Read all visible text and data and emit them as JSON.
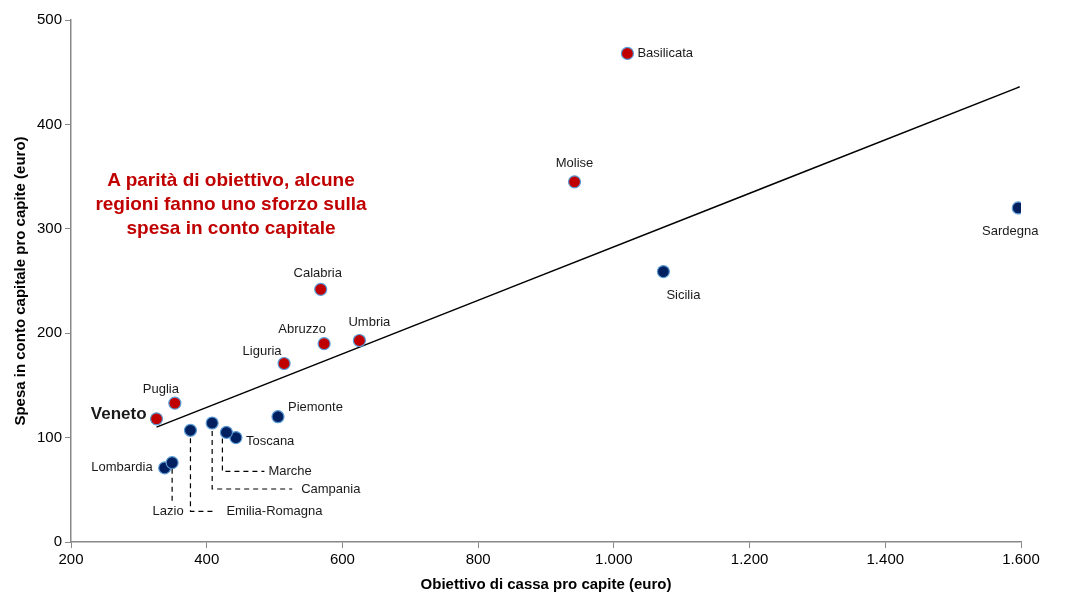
{
  "chart_data": {
    "type": "scatter",
    "xlabel": "Obiettivo di cassa pro capite (euro)",
    "ylabel": "Spesa in conto capitale pro capite (euro)",
    "xlim": [
      200,
      1600
    ],
    "xticks": [
      200,
      400,
      600,
      800,
      {
        "value": 1000,
        "label": "1.000"
      },
      {
        "value": 1200,
        "label": "1.200"
      },
      {
        "value": 1400,
        "label": "1.400"
      },
      {
        "value": 1600,
        "label": "1.600"
      }
    ],
    "ylim": [
      0,
      500
    ],
    "yticks": [
      0,
      100,
      200,
      300,
      400,
      500
    ],
    "grid": false,
    "legend": false,
    "series": [
      {
        "color": "#c00000",
        "marker": "circle",
        "x": [
          1020,
          942,
          568,
          573,
          625,
          514,
          353,
          326
        ],
        "values": [
          468,
          345,
          242,
          190,
          193,
          171,
          133,
          118
        ]
      },
      {
        "color": "#002060",
        "marker": "circle",
        "x": [
          1596,
          1073,
          505,
          443,
          338,
          429,
          408,
          376,
          349
        ],
        "values": [
          320,
          259,
          120,
          100,
          71,
          105,
          114,
          107,
          76
        ]
      },
      {
        "type": "line",
        "color": "#000000",
        "x": [
          326,
          1598
        ],
        "values": [
          110,
          436
        ]
      }
    ],
    "annotations": [
      "A parità di obiettivo, alcune regioni fanno uno sforzo sulla spesa in conto capitale",
      {
        "text": "Basilicata",
        "x": 1020,
        "y": 468
      },
      {
        "text": "Molise",
        "x": 942,
        "y": 345
      },
      {
        "text": "Calabria",
        "x": 568,
        "y": 242
      },
      {
        "text": "Abruzzo",
        "x": 573,
        "y": 190
      },
      {
        "text": "Umbria",
        "x": 625,
        "y": 193
      },
      {
        "text": "Liguria",
        "x": 514,
        "y": 171
      },
      {
        "text": "Puglia",
        "x": 353,
        "y": 133
      },
      {
        "text": "Veneto",
        "x": 326,
        "y": 118
      },
      {
        "text": "Sardegna",
        "x": 1596,
        "y": 320
      },
      {
        "text": "Sicilia",
        "x": 1073,
        "y": 259
      },
      {
        "text": "Piemonte",
        "x": 505,
        "y": 120
      },
      {
        "text": "Toscana",
        "x": 443,
        "y": 100
      },
      {
        "text": "Lombardia",
        "x": 338,
        "y": 71
      },
      {
        "text": "Marche",
        "x": 429,
        "y": 105
      },
      {
        "text": "Campania",
        "x": 408,
        "y": 114
      },
      {
        "text": "Emilia-Romagna",
        "x": 376,
        "y": 107
      },
      {
        "text": "Lazio",
        "x": 349,
        "y": 76
      }
    ]
  }
}
